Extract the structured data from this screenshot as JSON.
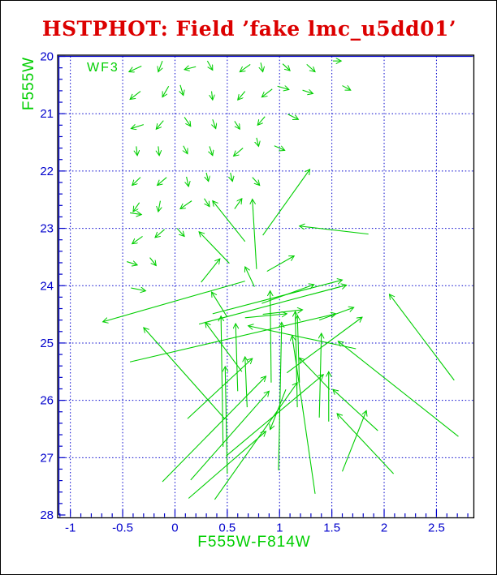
{
  "window": {
    "background": "#ffffff",
    "border_color": "#000000"
  },
  "title": {
    "text": "HSTPHOT: Field ’fake lmc_u5dd01’",
    "color": "#dc0000"
  },
  "chart_data": {
    "type": "scatter",
    "subtype": "vector-field",
    "title": "HSTPHOT: Field ’fake lmc_u5dd01’",
    "xlabel": "F555W-F814W",
    "ylabel": "F555W",
    "annotation": "WF3",
    "x_ticks": [
      -1,
      -0.5,
      0,
      0.5,
      1,
      1.5,
      2,
      2.5
    ],
    "x_tick_labels": [
      "-1",
      "-0.5",
      "0",
      "0.5",
      "1",
      "1.5",
      "2",
      "2.5"
    ],
    "y_ticks": [
      20,
      21,
      22,
      23,
      24,
      25,
      26,
      27,
      28
    ],
    "y_tick_labels": [
      "20",
      "21",
      "22",
      "23",
      "24",
      "25",
      "26",
      "27",
      "28"
    ],
    "xlim": [
      -1.11,
      2.85
    ],
    "ylim": [
      20,
      28
    ],
    "y_inverted": true,
    "x_minor_step": 0.1,
    "y_minor_step": 0.2,
    "grid": true,
    "legend": null,
    "colors": {
      "axis": "#0000cc",
      "frame": "#000000",
      "grid": "#0000cc",
      "tick_labels": "#0000cc",
      "title": "#dc0000",
      "axis_titles": "#00ce00",
      "data": "#00ce00"
    },
    "arrows": [
      [
        -0.32,
        20.17,
        -0.44,
        20.27
      ],
      [
        -0.12,
        20.08,
        -0.16,
        20.27
      ],
      [
        0.2,
        20.18,
        0.09,
        20.23
      ],
      [
        -0.33,
        20.61,
        -0.43,
        20.75
      ],
      [
        -0.06,
        20.52,
        -0.12,
        20.71
      ],
      [
        0.05,
        20.5,
        0.08,
        20.68
      ],
      [
        -0.3,
        21.19,
        -0.42,
        21.26
      ],
      [
        -0.11,
        21.12,
        -0.18,
        21.27
      ],
      [
        0.09,
        21.06,
        0.15,
        21.22
      ],
      [
        -0.37,
        21.57,
        -0.36,
        21.73
      ],
      [
        -0.16,
        21.57,
        -0.15,
        21.73
      ],
      [
        0.08,
        21.56,
        0.12,
        21.7
      ],
      [
        -0.33,
        22.11,
        -0.41,
        22.25
      ],
      [
        -0.08,
        22.11,
        -0.17,
        22.25
      ],
      [
        0.11,
        22.1,
        0.13,
        22.27
      ],
      [
        -0.34,
        22.55,
        -0.4,
        22.71
      ],
      [
        -0.14,
        22.52,
        -0.16,
        22.71
      ],
      [
        0.16,
        22.52,
        0.05,
        22.66
      ],
      [
        0.31,
        20.08,
        0.36,
        20.24
      ],
      [
        0.72,
        20.14,
        0.62,
        20.27
      ],
      [
        0.82,
        20.11,
        0.84,
        20.27
      ],
      [
        1.03,
        20.13,
        1.1,
        20.25
      ],
      [
        1.26,
        20.14,
        1.34,
        20.27
      ],
      [
        0.98,
        20.52,
        1.09,
        20.58
      ],
      [
        1.22,
        20.59,
        1.32,
        20.65
      ],
      [
        0.35,
        20.61,
        0.36,
        20.76
      ],
      [
        0.67,
        20.61,
        0.6,
        20.76
      ],
      [
        0.93,
        20.57,
        0.83,
        20.71
      ],
      [
        0.36,
        21.1,
        0.39,
        21.26
      ],
      [
        0.57,
        21.13,
        0.62,
        21.27
      ],
      [
        0.86,
        21.05,
        0.79,
        21.2
      ],
      [
        1.08,
        21.01,
        1.18,
        21.1
      ],
      [
        0.78,
        21.42,
        0.8,
        21.57
      ],
      [
        0.33,
        21.57,
        0.36,
        21.73
      ],
      [
        0.65,
        21.6,
        0.56,
        21.74
      ],
      [
        0.95,
        21.56,
        1.05,
        21.64
      ],
      [
        0.3,
        22.03,
        0.32,
        22.18
      ],
      [
        0.53,
        22.03,
        0.55,
        22.18
      ],
      [
        0.74,
        22.11,
        0.81,
        22.25
      ],
      [
        0.28,
        22.48,
        0.33,
        22.62
      ],
      [
        0.67,
        23.23,
        0.36,
        22.52
      ],
      [
        0.57,
        22.66,
        0.64,
        22.48
      ],
      [
        0.78,
        23.71,
        0.74,
        22.49
      ],
      [
        -0.43,
        22.73,
        -0.32,
        22.76
      ],
      [
        1.51,
        20.08,
        1.59,
        20.08
      ],
      [
        1.6,
        20.51,
        1.68,
        20.59
      ],
      [
        -0.1,
        23.02,
        -0.19,
        23.16
      ],
      [
        0.02,
        23.0,
        0.09,
        23.14
      ],
      [
        -0.31,
        23.14,
        -0.41,
        23.27
      ],
      [
        -0.46,
        23.58,
        -0.36,
        23.64
      ],
      [
        -0.24,
        23.51,
        -0.18,
        23.65
      ],
      [
        -0.42,
        24.04,
        -0.28,
        24.09
      ],
      [
        0.84,
        23.12,
        1.29,
        21.97
      ],
      [
        1.85,
        23.1,
        1.19,
        22.96
      ],
      [
        0.67,
        23.92,
        -0.69,
        24.63
      ],
      [
        0.36,
        24.49,
        1.6,
        23.9
      ],
      [
        0.23,
        24.67,
        1.64,
        23.99
      ],
      [
        0.48,
        26.33,
        -0.3,
        24.73
      ],
      [
        1.73,
        25.1,
        0.7,
        24.7
      ],
      [
        1.17,
        26.12,
        1.15,
        24.45
      ],
      [
        0.46,
        26.81,
        0.44,
        24.53
      ],
      [
        0.64,
        25.5,
        0.29,
        24.64
      ],
      [
        0.6,
        25.84,
        0.58,
        24.66
      ],
      [
        0.92,
        25.69,
        0.91,
        24.09
      ],
      [
        1.19,
        25.69,
        1.17,
        24.52
      ],
      [
        0.99,
        27.22,
        1.02,
        24.64
      ],
      [
        0.67,
        24.56,
        1.07,
        24.49
      ],
      [
        0.84,
        24.5,
        1.22,
        24.42
      ],
      [
        -0.43,
        25.33,
        1.54,
        24.49
      ],
      [
        0.83,
        24.31,
        1.33,
        23.98
      ],
      [
        1.38,
        24.6,
        1.71,
        24.38
      ],
      [
        1.07,
        25.52,
        1.79,
        24.55
      ],
      [
        2.67,
        25.65,
        2.05,
        24.15
      ],
      [
        2.71,
        26.63,
        1.56,
        24.97
      ],
      [
        1.6,
        27.24,
        1.83,
        26.18
      ],
      [
        0.49,
        26.97,
        1.42,
        25.55
      ],
      [
        1.38,
        26.3,
        1.4,
        24.83
      ],
      [
        1.47,
        26.37,
        1.47,
        25.5
      ],
      [
        1.34,
        27.63,
        1.12,
        24.87
      ],
      [
        1.06,
        25.81,
        0.91,
        26.51
      ],
      [
        0.25,
        23.94,
        0.43,
        23.53
      ],
      [
        0.52,
        23.61,
        0.23,
        23.06
      ],
      [
        0.5,
        24.55,
        0.35,
        24.11
      ],
      [
        0.76,
        24.02,
        0.67,
        23.67
      ],
      [
        0.88,
        23.75,
        1.14,
        23.48
      ],
      [
        0.38,
        27.73,
        1.17,
        25.69
      ],
      [
        0.12,
        26.32,
        0.74,
        25.27
      ],
      [
        0.15,
        27.39,
        0.9,
        25.84
      ],
      [
        0.13,
        27.71,
        0.87,
        26.54
      ],
      [
        -0.12,
        27.42,
        0.87,
        25.58
      ],
      [
        0.5,
        27.28,
        0.48,
        25.41
      ],
      [
        1.94,
        26.53,
        1.51,
        25.81
      ],
      [
        2.09,
        27.28,
        1.55,
        26.23
      ],
      [
        1.48,
        25.81,
        1.19,
        25.26
      ],
      [
        0.69,
        26.12,
        0.67,
        25.24
      ]
    ]
  }
}
